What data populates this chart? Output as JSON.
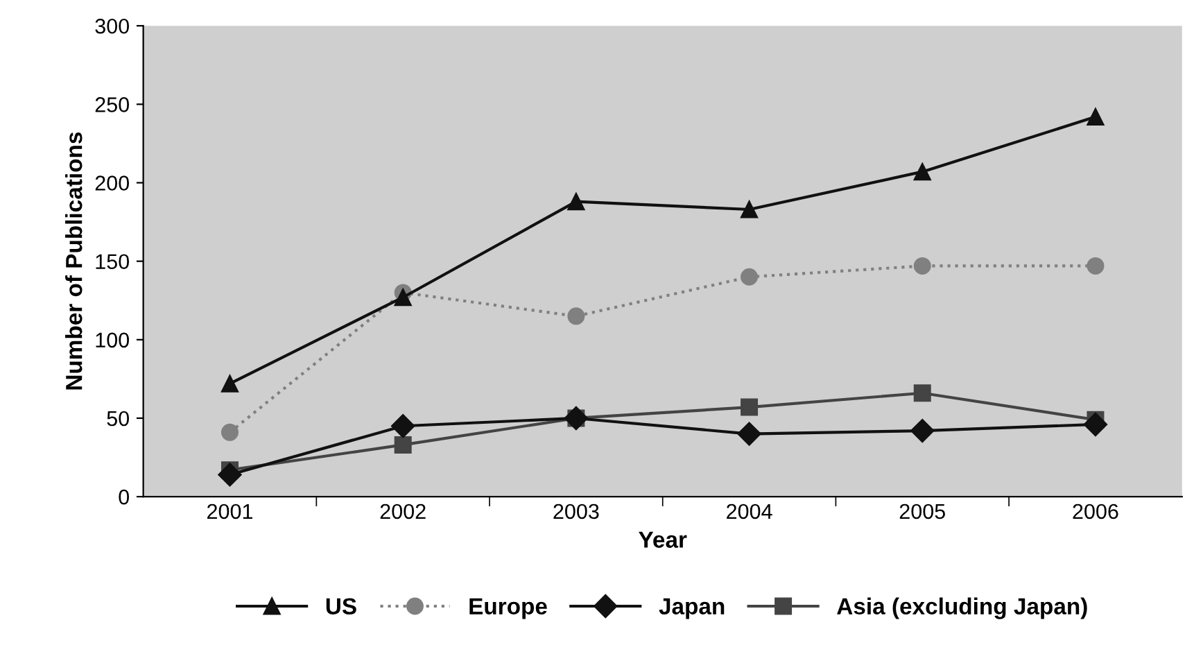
{
  "chart_data": {
    "type": "line",
    "xlabel": "Year",
    "ylabel": "Number of Publications",
    "categories": [
      "2001",
      "2002",
      "2003",
      "2004",
      "2005",
      "2006"
    ],
    "ylim": [
      0,
      300
    ],
    "yticks": [
      0,
      50,
      100,
      150,
      200,
      250,
      300
    ],
    "grid": false,
    "legend": "bottom",
    "series": [
      {
        "name": "US",
        "color": "#111111",
        "marker": "triangle",
        "line_style": "solid",
        "values": [
          72,
          127,
          188,
          183,
          207,
          242
        ]
      },
      {
        "name": "Europe",
        "color": "#808080",
        "marker": "circle",
        "line_style": "dotted",
        "values": [
          41,
          130,
          115,
          140,
          147,
          147
        ]
      },
      {
        "name": "Japan",
        "color": "#111111",
        "marker": "diamond",
        "line_style": "solid",
        "values": [
          14,
          45,
          50,
          40,
          42,
          46
        ]
      },
      {
        "name": "Asia (excluding Japan)",
        "color": "#444444",
        "marker": "square",
        "line_style": "solid",
        "values": [
          17,
          33,
          50,
          57,
          66,
          49
        ]
      }
    ]
  }
}
